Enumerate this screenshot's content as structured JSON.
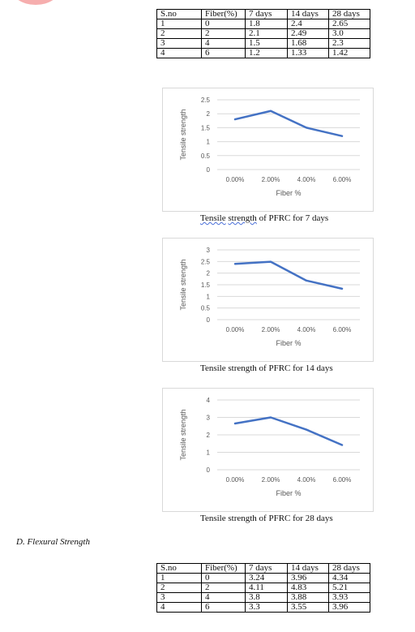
{
  "table_split_tensile": {
    "headers": [
      "S.no",
      "Fiber(%)",
      "7 days",
      "14 days",
      "28 days"
    ],
    "rows": [
      [
        "1",
        "0",
        "1.8",
        "2.4",
        "2.65"
      ],
      [
        "2",
        "2",
        "2.1",
        "2.49",
        "3.0"
      ],
      [
        "3",
        "4",
        "1.5",
        "1.68",
        "2.3"
      ],
      [
        "4",
        "6",
        "1.2",
        "1.33",
        "1.42"
      ]
    ]
  },
  "captions": {
    "c7_word1": "Tensile",
    "c7_word2": "strength",
    "c7_rest": " of PFRC for 7 days",
    "c14": "Tensile strength of PFRC for 14 days",
    "c28": "Tensile strength of PFRC for 28 days"
  },
  "section": {
    "heading": "D.   Flexural Strength"
  },
  "table_flexural": {
    "headers": [
      "S.no",
      "Fiber(%)",
      "7 days",
      "14 days",
      "28 days"
    ],
    "rows": [
      [
        "1",
        "0",
        "3.24",
        "3.96",
        "4.34"
      ],
      [
        "2",
        "2",
        "4.11",
        "4.83",
        "5.21"
      ],
      [
        "3",
        "4",
        "3.8",
        "3.88",
        "3.93"
      ],
      [
        "4",
        "6",
        "3.3",
        "3.55",
        "3.96"
      ]
    ]
  },
  "colors": {
    "series": "#4472c4",
    "grid": "#d9d9d9",
    "axis_text": "#595959"
  },
  "chart_data": [
    {
      "type": "line",
      "x": [
        "0.00%",
        "2.00%",
        "4.00%",
        "6.00%"
      ],
      "series": [
        {
          "values": [
            1.8,
            2.1,
            1.5,
            1.2
          ]
        }
      ],
      "xlabel": "Fiber %",
      "ylabel": "Tensile strength",
      "yticks": [
        "0",
        "0.5",
        "1",
        "1.5",
        "2",
        "2.5"
      ],
      "ylim": [
        0,
        2.5
      ],
      "grid": true,
      "legend": "none"
    },
    {
      "type": "line",
      "x": [
        "0.00%",
        "2.00%",
        "4.00%",
        "6.00%"
      ],
      "series": [
        {
          "values": [
            2.4,
            2.49,
            1.68,
            1.33
          ]
        }
      ],
      "xlabel": "Fiber %",
      "ylabel": "Tensile strength",
      "yticks": [
        "0",
        "0.5",
        "1",
        "1.5",
        "2",
        "2.5",
        "3"
      ],
      "ylim": [
        0,
        3
      ],
      "grid": true,
      "legend": "none"
    },
    {
      "type": "line",
      "x": [
        "0.00%",
        "2.00%",
        "4.00%",
        "6.00%"
      ],
      "series": [
        {
          "values": [
            2.65,
            3.0,
            2.3,
            1.42
          ]
        }
      ],
      "xlabel": "Fiber %",
      "ylabel": "Tensile strength",
      "yticks": [
        "0",
        "1",
        "2",
        "3",
        "4"
      ],
      "ylim": [
        0,
        4
      ],
      "grid": true,
      "legend": "none"
    }
  ]
}
